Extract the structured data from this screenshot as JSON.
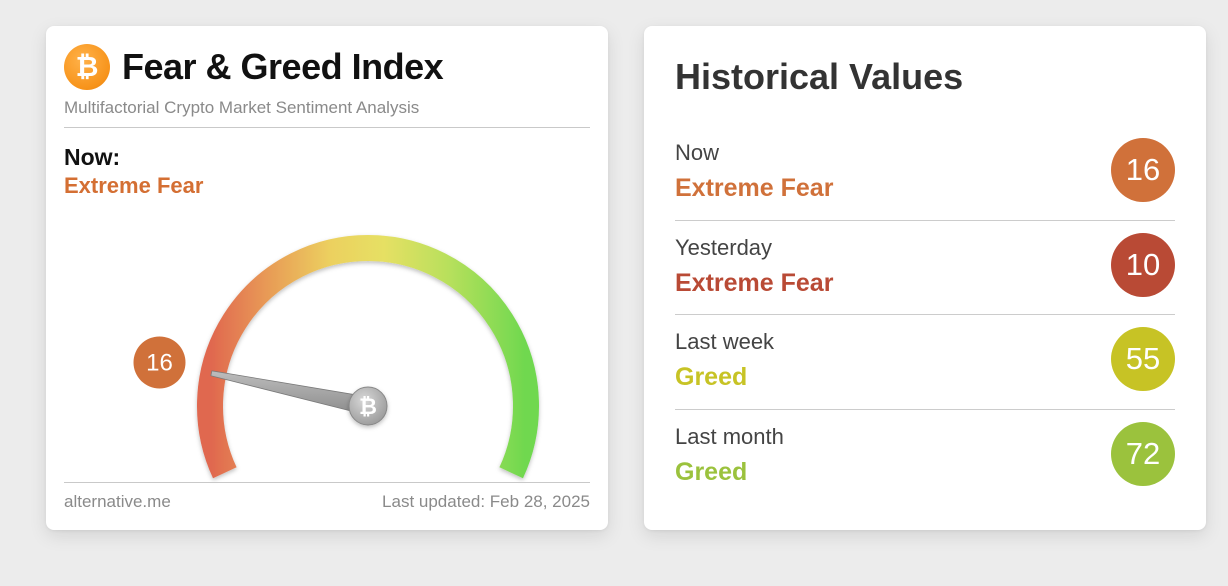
{
  "fear_greed": {
    "logo_icon": "bitcoin-logo-icon",
    "title": "Fear & Greed Index",
    "subtitle": "Multifactorial Crypto Market Sentiment Analysis",
    "now_label": "Now:",
    "now_classification": "Extreme Fear",
    "value": "16",
    "value_color": "#d0713a",
    "gauge_min": 0,
    "gauge_max": 100,
    "needle_hub_icon": "bitcoin-icon",
    "footer_source": "alternative.me",
    "footer_updated": "Last updated: Feb 28, 2025"
  },
  "historical": {
    "title": "Historical Values",
    "rows": [
      {
        "label": "Now",
        "classification": "Extreme Fear",
        "value": "16",
        "color": "#d0713a"
      },
      {
        "label": "Yesterday",
        "classification": "Extreme Fear",
        "value": "10",
        "color": "#b94a35"
      },
      {
        "label": "Last week",
        "classification": "Greed",
        "value": "55",
        "color": "#c7c325"
      },
      {
        "label": "Last month",
        "classification": "Greed",
        "value": "72",
        "color": "#9bc23d"
      }
    ]
  }
}
